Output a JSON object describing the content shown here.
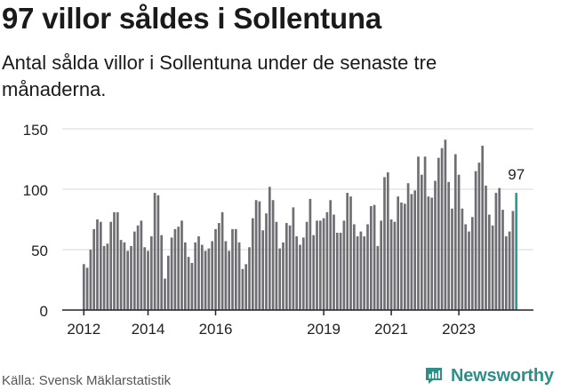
{
  "title": "97 villor såldes i Sollentuna",
  "subtitle": "Antal sålda villor i Sollentuna under de senaste tre månaderna.",
  "source": "Källa: Svensk Mäklarstatistik",
  "brand": "Newsworthy",
  "colors": {
    "bar": "#6f6e73",
    "highlight": "#2a9d8f",
    "grid": "#d9d9d9",
    "axis": "#222222",
    "brand": "#2f8f86"
  },
  "chart_data": {
    "type": "bar",
    "title": "97 villor såldes i Sollentuna",
    "xlabel": "",
    "ylabel": "",
    "ylim": [
      0,
      150
    ],
    "yticks": [
      0,
      50,
      100,
      150
    ],
    "xtick_labels": [
      "2012",
      "2014",
      "2016",
      "2019",
      "2021",
      "2023"
    ],
    "xtick_positions": [
      0,
      19,
      39,
      71,
      91,
      111
    ],
    "highlight_label": "97",
    "values": [
      38,
      35,
      50,
      67,
      75,
      73,
      53,
      55,
      73,
      81,
      81,
      58,
      56,
      49,
      53,
      65,
      70,
      74,
      52,
      49,
      61,
      97,
      95,
      62,
      26,
      45,
      60,
      67,
      69,
      74,
      56,
      44,
      39,
      56,
      61,
      54,
      49,
      51,
      57,
      67,
      72,
      81,
      57,
      49,
      67,
      67,
      56,
      34,
      38,
      52,
      76,
      91,
      90,
      66,
      80,
      102,
      91,
      73,
      51,
      56,
      72,
      70,
      85,
      61,
      54,
      60,
      73,
      92,
      62,
      74,
      74,
      76,
      81,
      91,
      79,
      64,
      64,
      74,
      97,
      94,
      71,
      61,
      65,
      61,
      71,
      86,
      87,
      53,
      74,
      110,
      114,
      75,
      73,
      94,
      89,
      88,
      105,
      96,
      99,
      127,
      112,
      127,
      94,
      93,
      107,
      126,
      134,
      141,
      106,
      84,
      129,
      112,
      84,
      71,
      65,
      77,
      115,
      122,
      136,
      103,
      79,
      70,
      97,
      101,
      83,
      61,
      65,
      82,
      97
    ]
  }
}
